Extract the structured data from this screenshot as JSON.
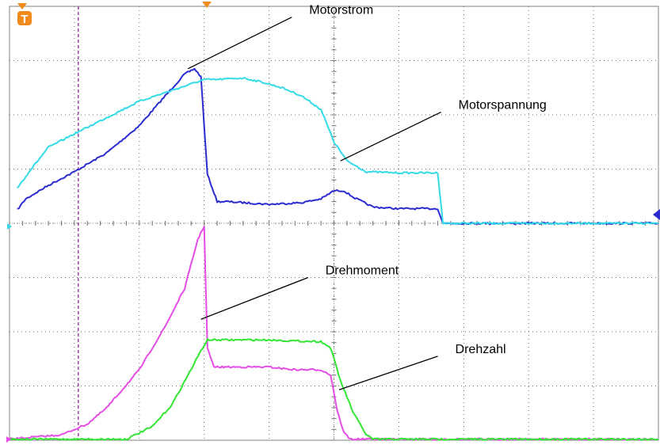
{
  "chart_data": {
    "type": "line",
    "title": "",
    "xlabel": "",
    "ylabel": "",
    "grid": true,
    "divisions": {
      "x": 10,
      "y": 8
    },
    "x_units": "div",
    "y_units": "div",
    "xlim": [
      0,
      10
    ],
    "ylim": [
      0,
      8
    ],
    "trigger_marker": "T",
    "cursor_x": 1.06,
    "series": [
      {
        "key": "motorstrom",
        "name": "Motorstrom",
        "color": "#2b2bd0",
        "x": [
          0.12,
          0.25,
          0.6,
          1.0,
          1.5,
          2.0,
          2.4,
          2.7,
          2.85,
          2.95,
          3.0,
          3.05,
          3.2,
          3.35,
          4.0,
          4.5,
          4.8,
          5.0,
          5.15,
          5.3,
          5.6,
          6.0,
          6.5,
          6.6,
          6.68,
          7.0,
          8.0,
          9.0,
          10.0
        ],
        "y": [
          4.25,
          4.45,
          4.7,
          4.95,
          5.3,
          5.8,
          6.35,
          6.75,
          6.85,
          6.7,
          5.8,
          4.9,
          4.4,
          4.4,
          4.35,
          4.38,
          4.45,
          4.6,
          4.6,
          4.48,
          4.3,
          4.27,
          4.27,
          4.27,
          4.0,
          4.0,
          4.0,
          4.0,
          4.0
        ]
      },
      {
        "key": "motorspannung",
        "name": "Motorspannung",
        "color": "#33dbe6",
        "x": [
          0.12,
          0.3,
          0.6,
          1.0,
          1.5,
          2.0,
          2.5,
          3.0,
          3.2,
          3.6,
          3.9,
          4.2,
          4.5,
          4.8,
          5.0,
          5.2,
          5.5,
          6.0,
          6.5,
          6.6,
          6.68,
          7.0,
          8.0,
          9.0,
          10.0
        ],
        "y": [
          4.65,
          4.95,
          5.4,
          5.65,
          5.95,
          6.25,
          6.45,
          6.65,
          6.65,
          6.68,
          6.6,
          6.5,
          6.35,
          6.1,
          5.5,
          5.15,
          4.95,
          4.93,
          4.93,
          4.93,
          4.0,
          4.0,
          4.0,
          4.0,
          4.0
        ]
      },
      {
        "key": "drehmoment",
        "name": "Drehmoment",
        "color": "#e64de6",
        "x": [
          0.0,
          0.8,
          1.2,
          1.5,
          2.0,
          2.4,
          2.7,
          2.9,
          3.0,
          3.05,
          3.15,
          3.3,
          3.6,
          4.0,
          4.4,
          4.8,
          4.95,
          5.05,
          5.15,
          5.25,
          6.0,
          7.0,
          8.0,
          9.0,
          10.0
        ],
        "y": [
          0.02,
          0.1,
          0.3,
          0.6,
          1.3,
          2.1,
          2.8,
          3.7,
          3.95,
          1.7,
          1.35,
          1.35,
          1.35,
          1.35,
          1.3,
          1.3,
          1.2,
          0.55,
          0.15,
          0.02,
          0.02,
          0.02,
          0.02,
          0.02,
          0.02
        ]
      },
      {
        "key": "drehzahl",
        "name": "Drehzahl",
        "color": "#33e633",
        "x": [
          0.0,
          1.0,
          1.8,
          2.2,
          2.5,
          2.75,
          2.95,
          3.05,
          3.2,
          3.6,
          4.0,
          4.4,
          4.8,
          4.95,
          5.1,
          5.3,
          5.5,
          5.6,
          6.0,
          7.0,
          8.0,
          9.0,
          10.0
        ],
        "y": [
          0.02,
          0.02,
          0.02,
          0.25,
          0.65,
          1.2,
          1.65,
          1.85,
          1.85,
          1.85,
          1.85,
          1.83,
          1.82,
          1.7,
          1.1,
          0.5,
          0.1,
          0.02,
          0.02,
          0.02,
          0.02,
          0.02,
          0.02
        ]
      }
    ],
    "annotations": [
      {
        "series": "motorstrom",
        "text": "Motorstrom",
        "point": [
          2.75,
          6.85
        ],
        "anchor": [
          4.35,
          7.8
        ]
      },
      {
        "series": "motorspannung",
        "text": "Motorspannung",
        "point": [
          5.1,
          5.15
        ],
        "anchor": [
          6.65,
          6.05
        ]
      },
      {
        "series": "drehmoment",
        "text": "Drehmoment",
        "point": [
          2.95,
          2.23
        ],
        "anchor": [
          4.6,
          3.0
        ]
      },
      {
        "series": "drehzahl",
        "text": "Drehzahl",
        "point": [
          5.08,
          0.93
        ],
        "anchor": [
          6.6,
          1.55
        ]
      }
    ]
  }
}
